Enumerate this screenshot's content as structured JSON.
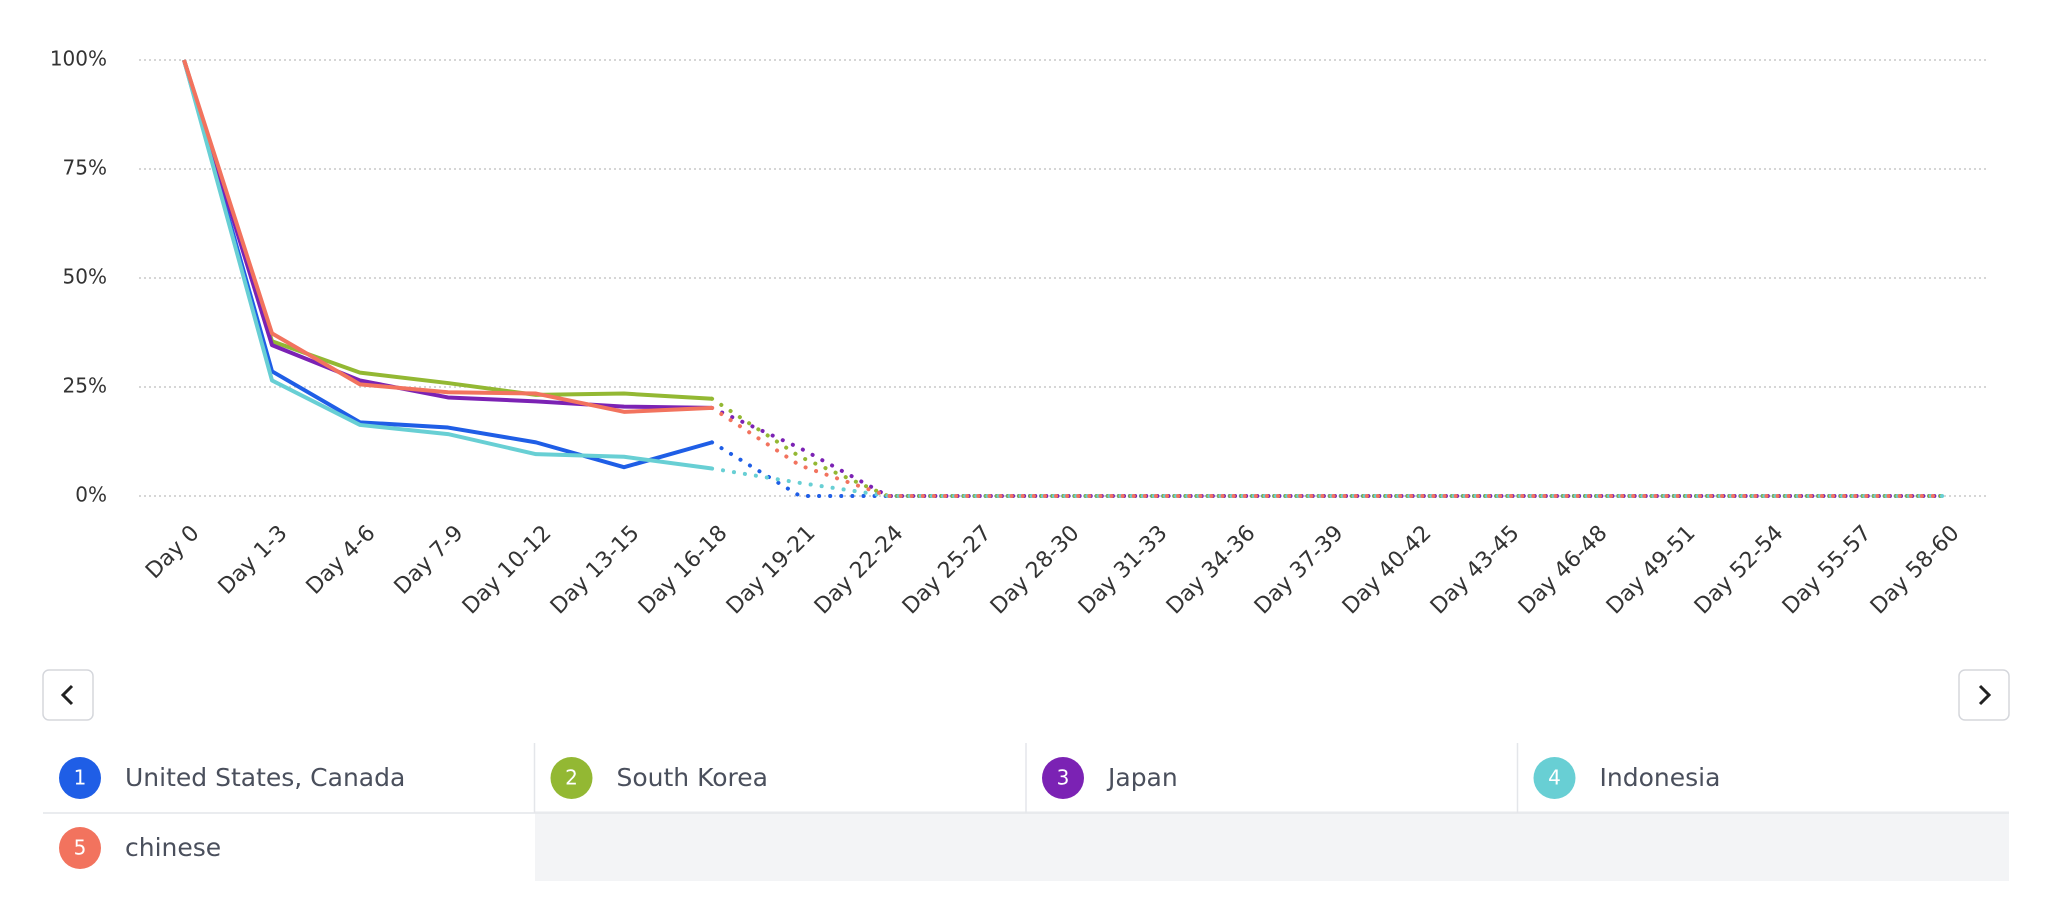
{
  "chart_data": {
    "type": "line",
    "categories": [
      "Day 0",
      "Day 1-3",
      "Day 4-6",
      "Day 7-9",
      "Day 10-12",
      "Day 13-15",
      "Day 16-18",
      "Day 19-21",
      "Day 22-24",
      "Day 25-27",
      "Day 28-30",
      "Day 31-33",
      "Day 34-36",
      "Day 37-39",
      "Day 40-42",
      "Day 43-45",
      "Day 46-48",
      "Day 49-51",
      "Day 52-54",
      "Day 55-57",
      "Day 58-60"
    ],
    "series": [
      {
        "number": "1",
        "name": "United States, Canada",
        "color": "#1f5ee6",
        "values": [
          100,
          28.6,
          16.9,
          15.7,
          12.3,
          6.6,
          12.3,
          0,
          0,
          0,
          0,
          0,
          0,
          0,
          0,
          0,
          0,
          0,
          0,
          0,
          0
        ]
      },
      {
        "number": "2",
        "name": "South Korea",
        "color": "#93b833",
        "values": [
          100,
          35.5,
          28.3,
          25.9,
          23.2,
          23.5,
          22.3,
          9,
          0,
          0,
          0,
          0,
          0,
          0,
          0,
          0,
          0,
          0,
          0,
          0,
          0
        ]
      },
      {
        "number": "3",
        "name": "Japan",
        "color": "#7b22b4",
        "values": [
          100,
          34.6,
          26.5,
          22.6,
          21.7,
          20.5,
          20.2,
          11,
          0,
          0,
          0,
          0,
          0,
          0,
          0,
          0,
          0,
          0,
          0,
          0,
          0
        ]
      },
      {
        "number": "4",
        "name": "Indonesia",
        "color": "#68cfd4",
        "values": [
          100,
          26.5,
          16.3,
          14.2,
          9.6,
          9.0,
          6.3,
          3,
          0,
          0,
          0,
          0,
          0,
          0,
          0,
          0,
          0,
          0,
          0,
          0,
          0
        ]
      },
      {
        "number": "5",
        "name": "chinese",
        "color": "#f2735e",
        "values": [
          100,
          37.3,
          25.6,
          23.8,
          23.5,
          19.3,
          20.2,
          7,
          0,
          0,
          0,
          0,
          0,
          0,
          0,
          0,
          0,
          0,
          0,
          0,
          0
        ]
      }
    ],
    "projected_from_index": 6,
    "ylim": [
      0,
      100
    ],
    "yticks": [
      {
        "value": 0,
        "label": "0%"
      },
      {
        "value": 25,
        "label": "25%"
      },
      {
        "value": 50,
        "label": "50%"
      },
      {
        "value": 75,
        "label": "75%"
      },
      {
        "value": 100,
        "label": "100%"
      }
    ],
    "grid": true
  }
}
